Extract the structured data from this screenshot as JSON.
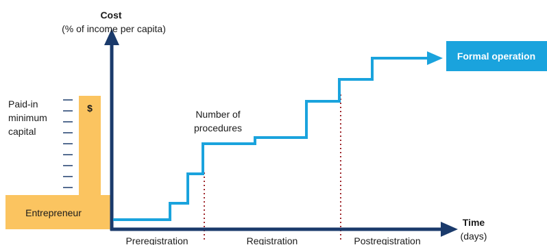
{
  "axes": {
    "y_title": "Cost",
    "y_subtitle": "(% of income per capita)",
    "x_title": "Time",
    "x_subtitle": "(days)"
  },
  "capital": {
    "label_lines": [
      "Paid-in",
      "minimum",
      "capital"
    ],
    "symbol": "$"
  },
  "entrepreneur_label": "Entrepreneur",
  "procedures_label_lines": [
    "Number of",
    "procedures"
  ],
  "goal_label": "Formal operation",
  "phases": [
    "Preregistration",
    "Registration",
    "Postregistration"
  ],
  "colors": {
    "axis": "#1a3a6b",
    "step_line": "#1aa3dd",
    "capital_fill": "#fbc460",
    "goal_box": "#1aa3dd",
    "divider": "#a0282d"
  }
}
